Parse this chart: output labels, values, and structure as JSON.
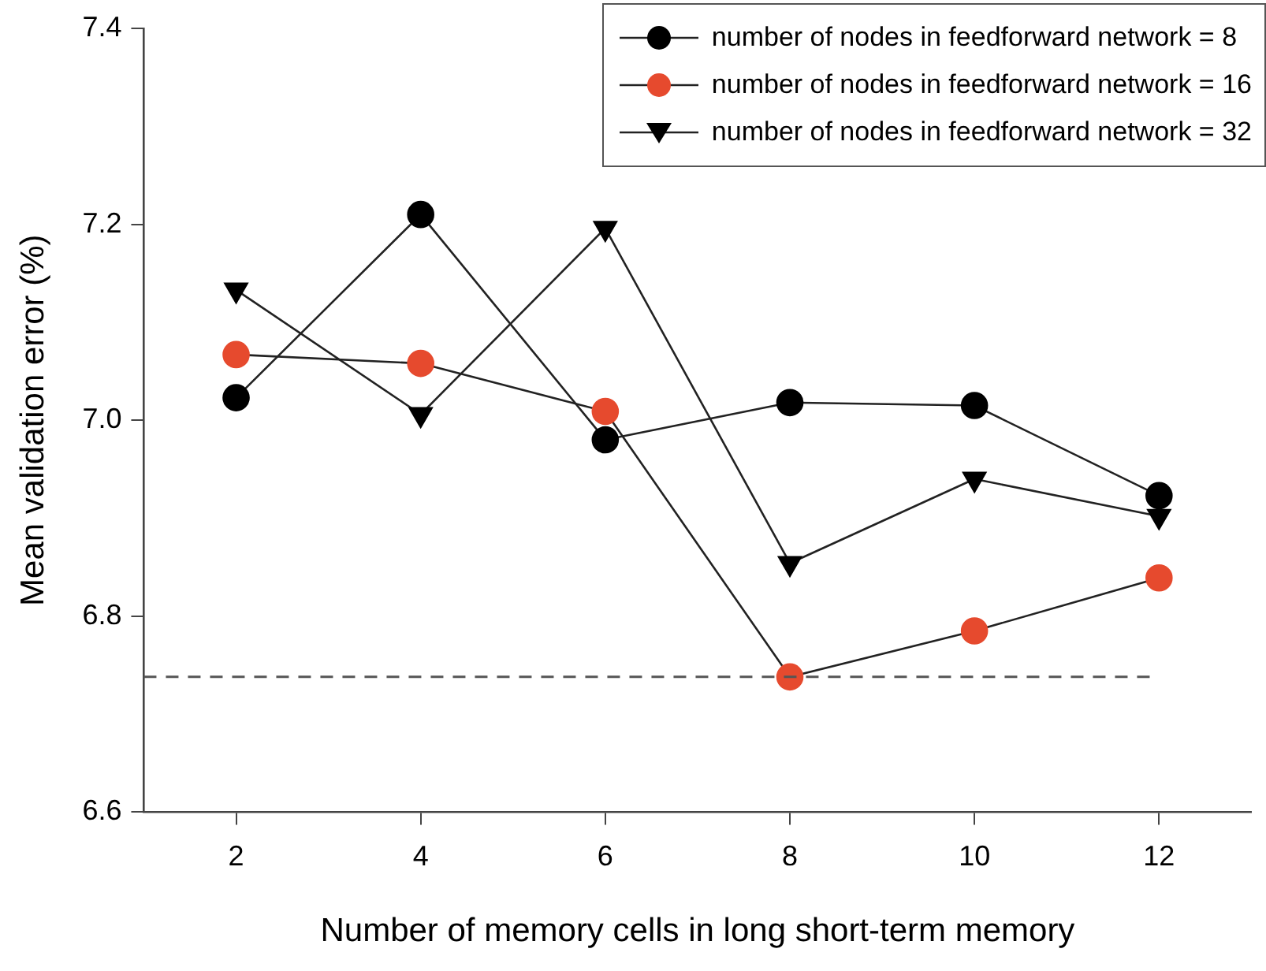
{
  "chart_data": {
    "type": "line",
    "xlabel": "Number of memory cells in long short-term memory",
    "ylabel": "Mean validation error (%)",
    "x": [
      2,
      4,
      6,
      8,
      10,
      12
    ],
    "series": [
      {
        "name": "number of nodes in feedforward network = 8",
        "color": "#000000",
        "marker": "circle",
        "values": [
          7.023,
          7.21,
          6.98,
          7.018,
          7.015,
          6.923
        ]
      },
      {
        "name": "number of nodes in feedforward network = 16",
        "color": "#e64a2e",
        "marker": "circle",
        "values": [
          7.067,
          7.058,
          7.009,
          6.738,
          6.785,
          6.839
        ]
      },
      {
        "name": "number of nodes in feedforward network = 32",
        "color": "#000000",
        "marker": "triangle",
        "values": [
          7.133,
          7.006,
          7.196,
          6.854,
          6.94,
          6.902
        ]
      }
    ],
    "xlim": [
      1,
      13
    ],
    "xticks": [
      2,
      4,
      6,
      8,
      10,
      12
    ],
    "ylim": [
      6.6,
      7.4
    ],
    "yticks": [
      {
        "value": 6.6,
        "label": "6.6"
      },
      {
        "value": 6.8,
        "label": "6.8"
      },
      {
        "value": 7.0,
        "label": "7.0"
      },
      {
        "value": 7.2,
        "label": "7.2"
      },
      {
        "value": 7.4,
        "label": "7.4"
      }
    ],
    "ref_lines": [
      {
        "axis": "y",
        "value": 6.738,
        "color": "#555555",
        "line_style": "dashed"
      }
    ],
    "grid": false,
    "legend": "top right",
    "line_style": "solid"
  }
}
